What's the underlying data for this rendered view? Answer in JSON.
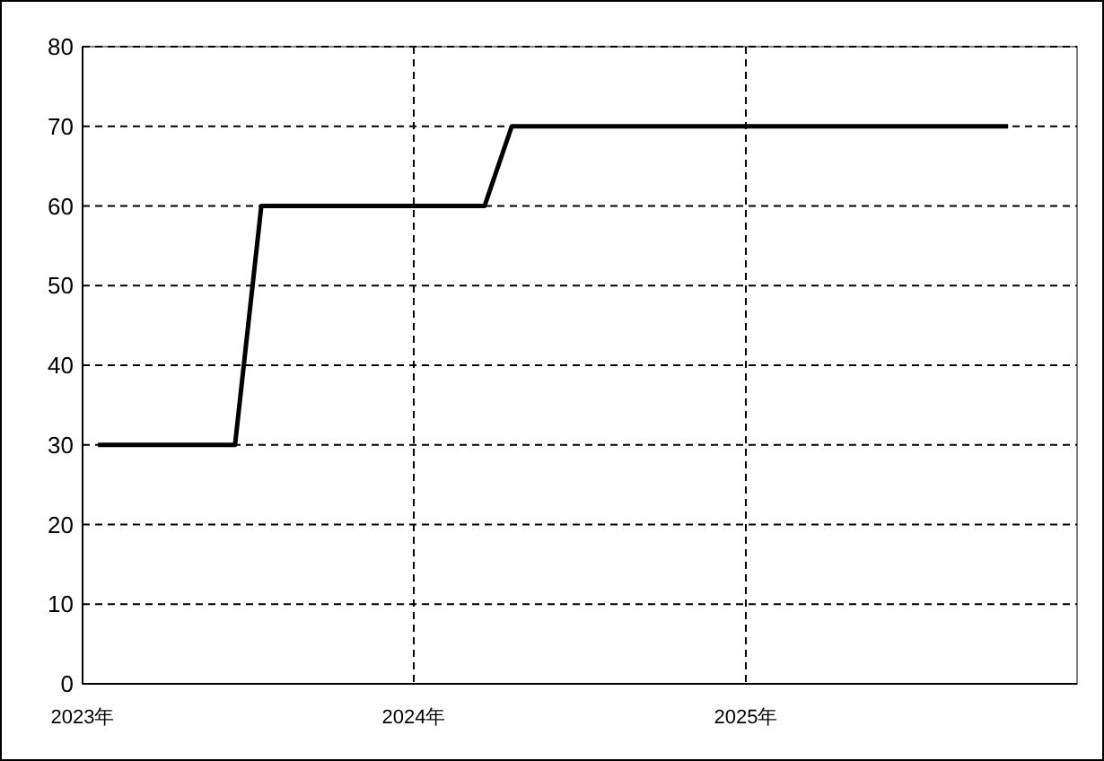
{
  "chart_data": {
    "type": "line",
    "x": [
      "2023-01-18",
      "2023-06-18",
      "2023-07-17",
      "2024-03-19",
      "2024-04-18",
      "2025-10-17"
    ],
    "series": [
      {
        "color": "#000000",
        "values": [
          30,
          30,
          60,
          60,
          70,
          70
        ]
      }
    ],
    "xlim": [
      "2023-01-01",
      "2026-01-01"
    ],
    "xticks": [
      {
        "value": "2023-01-01",
        "label": "2023年"
      },
      {
        "value": "2024-01-01",
        "label": "2024年"
      },
      {
        "value": "2025-01-01",
        "label": "2025年"
      }
    ],
    "ylim": [
      0,
      80
    ],
    "yticks": [
      0,
      10,
      20,
      30,
      40,
      50,
      60,
      70,
      80
    ],
    "grid": true,
    "marker": "none",
    "line_style": "solid"
  }
}
